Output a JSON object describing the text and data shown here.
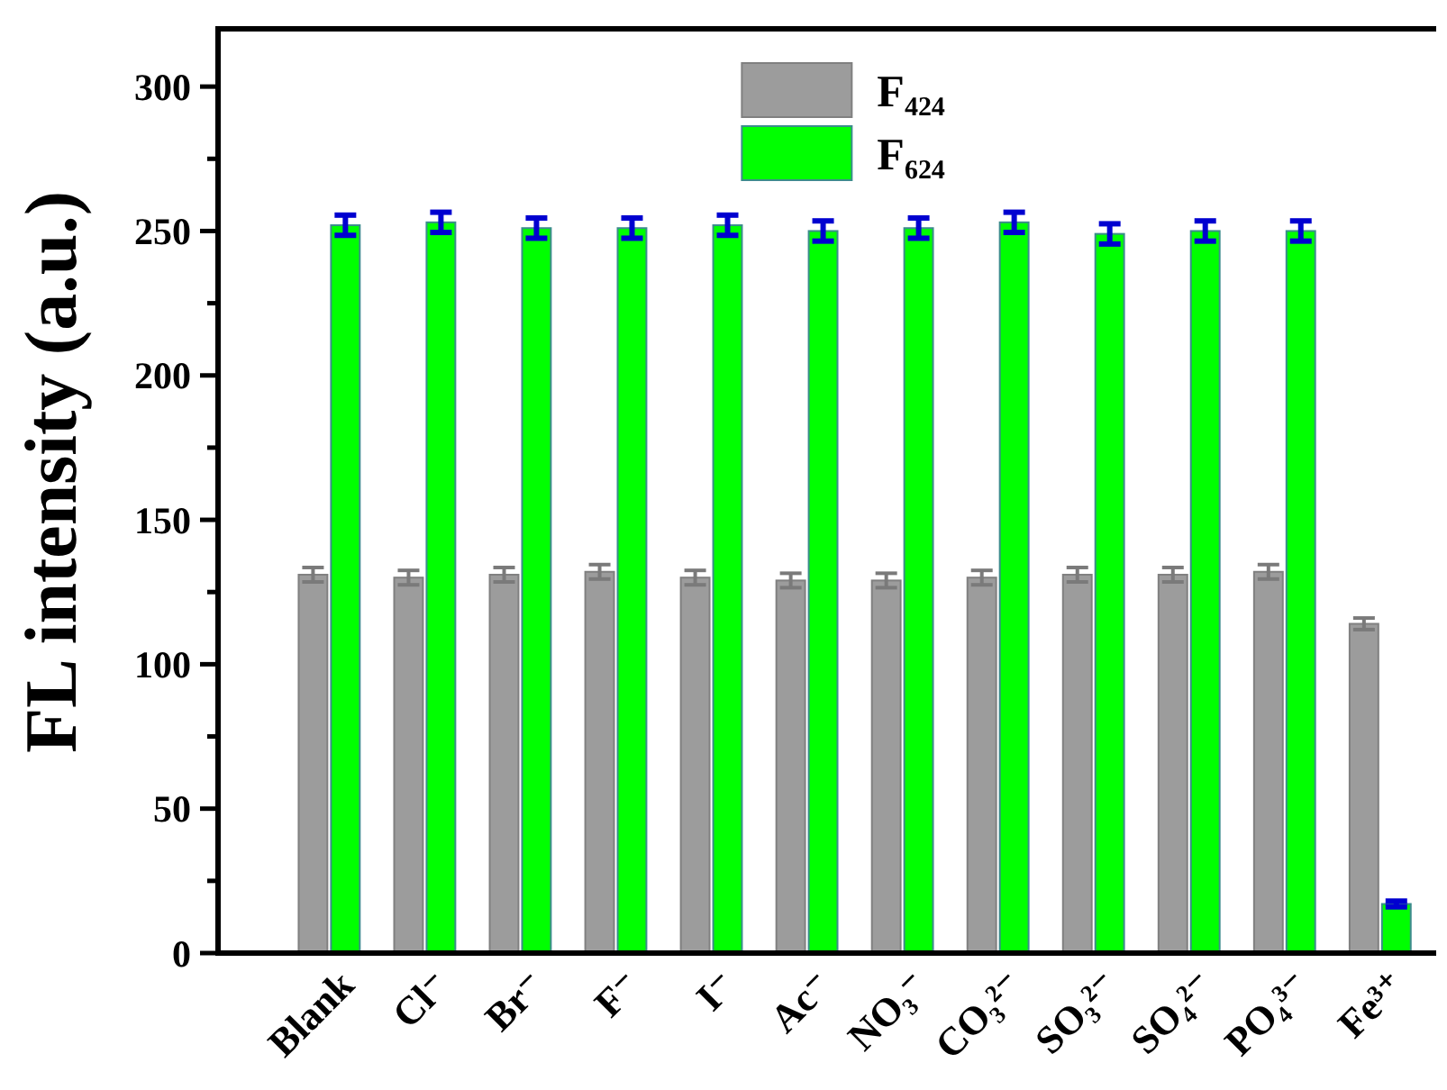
{
  "chart_data": {
    "type": "bar",
    "ylabel": "FL intensity (a.u.)",
    "categories": [
      "Blank",
      "Cl⁻",
      "Br⁻",
      "F⁻",
      "I⁻",
      "Ac⁻",
      "NO₃⁻",
      "CO₃²⁻",
      "SO₃²⁻",
      "SO₄²⁻",
      "PO₄³⁻",
      "Fe³⁺"
    ],
    "series": [
      {
        "name": "F₄₂₄",
        "color": "#9c9c9c",
        "values": [
          131,
          130,
          131,
          132,
          130,
          129,
          129,
          130,
          131,
          131,
          132,
          114
        ],
        "errors": [
          2.5,
          2.5,
          2.5,
          2.5,
          2.5,
          2.5,
          2.5,
          2.5,
          2.5,
          2.5,
          2.5,
          2
        ]
      },
      {
        "name": "F₆₂₄",
        "color": "#00ff00",
        "values": [
          252,
          253,
          251,
          251,
          252,
          250,
          251,
          253,
          249,
          250,
          250,
          17
        ],
        "errors": [
          3.5,
          3.5,
          3.5,
          3.5,
          3.5,
          3.5,
          3.5,
          3.5,
          3.5,
          3.5,
          3.5,
          1
        ]
      }
    ],
    "ylim": [
      0,
      320
    ],
    "yticks": [
      0,
      {
        "value": 25,
        "label": null
      },
      50,
      {
        "value": 75,
        "label": null
      },
      100,
      {
        "value": 125,
        "label": null
      },
      150,
      {
        "value": 175,
        "label": null
      },
      200,
      {
        "value": 225,
        "label": null
      },
      250,
      {
        "value": 275,
        "label": null
      },
      300
    ],
    "legend": "top"
  }
}
